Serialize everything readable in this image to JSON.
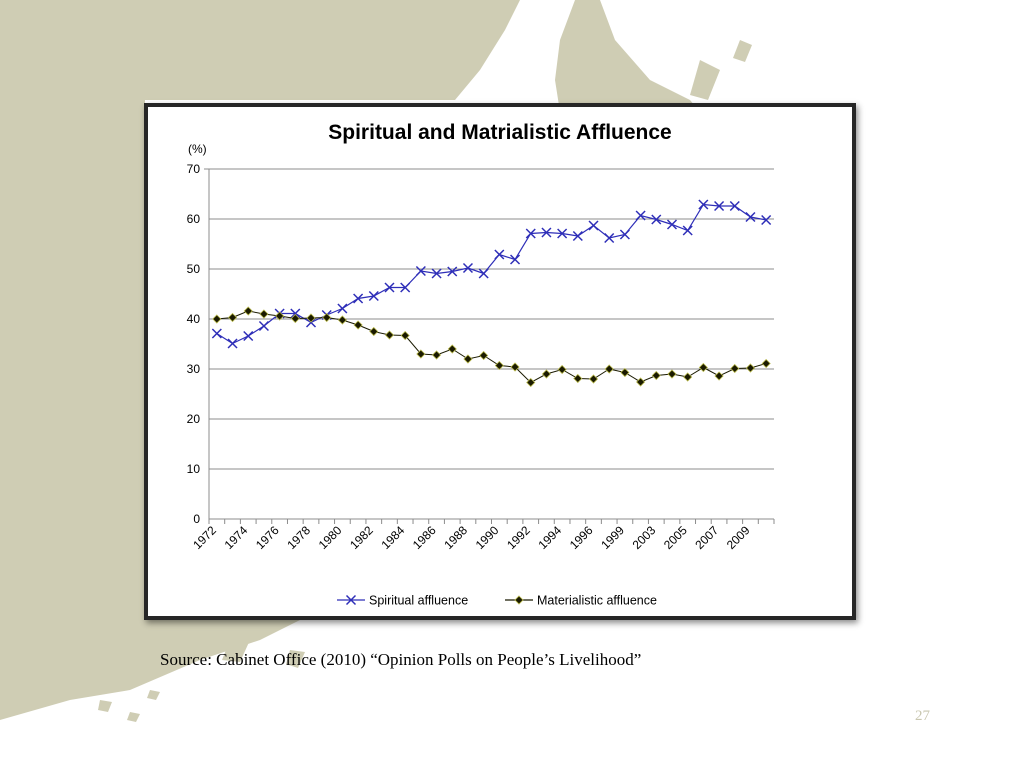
{
  "slide": {
    "source": "Source: Cabinet Office (2010) “Opinion Polls on People’s Livelihood”",
    "page_number": "27",
    "background_color": "#cfcdb4"
  },
  "chart_data": {
    "type": "line",
    "title": "Spiritual  and Matrialistic Affluence",
    "ylabel": "(%)",
    "xlabel": "",
    "ylim": [
      0,
      70
    ],
    "yticks": [
      0,
      10,
      20,
      30,
      40,
      50,
      60,
      70
    ],
    "grid": true,
    "legend_position": "bottom",
    "categories": [
      "1972",
      "",
      "1974",
      "",
      "1976",
      "",
      "1978",
      "",
      "1980",
      "",
      "1982",
      "",
      "1984",
      "",
      "1986",
      "",
      "1988",
      "",
      "1990",
      "",
      "1992",
      "",
      "1994",
      "",
      "1996",
      "",
      "1999",
      "",
      "2003",
      "",
      "2005",
      "",
      "2007",
      "",
      "2009",
      ""
    ],
    "series": [
      {
        "name": "Spiritual affluence",
        "marker": "x",
        "color": "#2e2eb8",
        "values": [
          37.1,
          35.1,
          36.6,
          38.6,
          41.1,
          41.1,
          39.3,
          40.8,
          42.1,
          44.1,
          44.6,
          46.3,
          46.3,
          49.6,
          49.1,
          49.5,
          50.2,
          49.1,
          52.9,
          51.9,
          57.1,
          57.3,
          57.1,
          56.6,
          58.7,
          56.2,
          56.9,
          60.7,
          59.9,
          58.9,
          57.7,
          62.9,
          62.6,
          62.6,
          60.4,
          59.8
        ]
      },
      {
        "name": "Materialistic affluence",
        "marker": "diamond",
        "color": "#1a1a00",
        "values": [
          40.0,
          40.3,
          41.6,
          41.0,
          40.6,
          40.1,
          40.2,
          40.3,
          39.8,
          38.8,
          37.5,
          36.8,
          36.7,
          33.0,
          32.8,
          34.0,
          32.0,
          32.7,
          30.7,
          30.4,
          27.3,
          29.0,
          29.9,
          28.1,
          28.0,
          30.0,
          29.3,
          27.4,
          28.7,
          29.0,
          28.4,
          30.3,
          28.6,
          30.1,
          30.2,
          31.1
        ]
      }
    ]
  }
}
